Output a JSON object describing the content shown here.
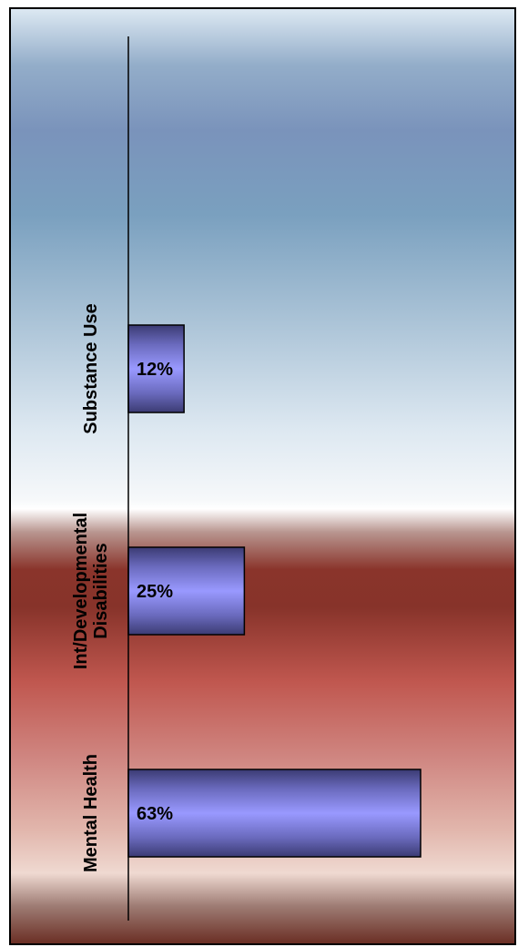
{
  "chart_data": {
    "type": "bar",
    "orientation": "horizontal",
    "categories": [
      "Substance Use",
      "Int/Developmental Disabilities",
      "Mental Health"
    ],
    "category_lines": [
      [
        "Substance Use"
      ],
      [
        "Int/Developmental",
        "Disabilities"
      ],
      [
        "Mental Health"
      ]
    ],
    "values": [
      12,
      25,
      63
    ],
    "data_labels": [
      "12%",
      "25%",
      "63%"
    ],
    "xlim": [
      0,
      100
    ],
    "grid": false,
    "legend": "none",
    "title": "",
    "xlabel": "",
    "ylabel": ""
  },
  "colors": {
    "bar_light": "#9999ff",
    "bar_dark": "#3b3b73",
    "bar_border": "#000000",
    "bg_blue": "#7898bc",
    "bg_red": "#993a30"
  }
}
